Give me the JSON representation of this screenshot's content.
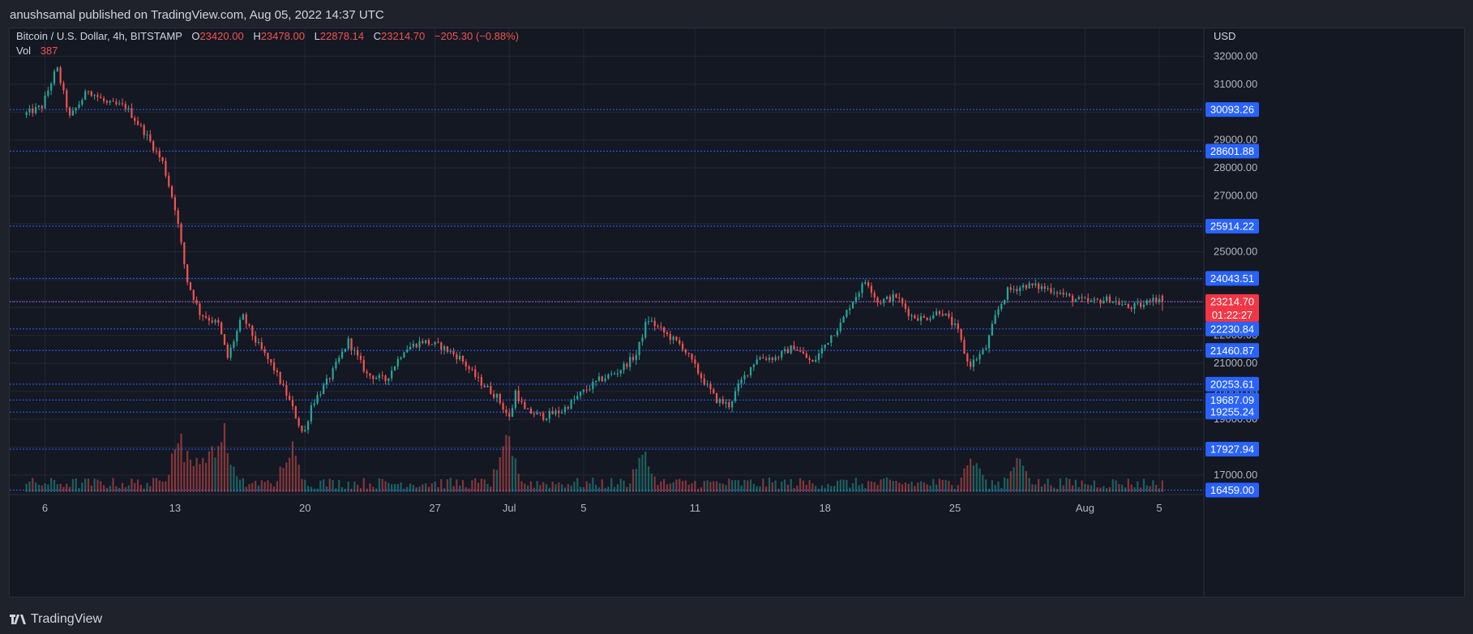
{
  "header": {
    "published": "anushsamal published on TradingView.com, Aug 05, 2022 14:37 UTC"
  },
  "footer": {
    "brand": "TradingView"
  },
  "chart_data": {
    "type": "candlestick",
    "symbol": "Bitcoin / U.S. Dollar, 4h, BITSTAMP",
    "ohlc": {
      "o": "23420.00",
      "h": "23478.00",
      "l": "22878.14",
      "c": "23214.70",
      "change": "−205.30 (−0.88%)"
    },
    "volume": {
      "label": "Vol",
      "value": "387"
    },
    "currency": "USD",
    "ylim": [
      16300,
      33000
    ],
    "y_ticks": [
      17000,
      18000,
      19000,
      20000,
      21000,
      22000,
      23000,
      24000,
      25000,
      26000,
      27000,
      28000,
      29000,
      30000,
      31000,
      32000
    ],
    "x_ticks": [
      {
        "label": "6",
        "day": 1
      },
      {
        "label": "13",
        "day": 8
      },
      {
        "label": "20",
        "day": 15
      },
      {
        "label": "27",
        "day": 22
      },
      {
        "label": "Jul",
        "day": 26
      },
      {
        "label": "5",
        "day": 30
      },
      {
        "label": "11",
        "day": 36
      },
      {
        "label": "18",
        "day": 43
      },
      {
        "label": "25",
        "day": 50
      },
      {
        "label": "Aug",
        "day": 57
      },
      {
        "label": "5",
        "day": 61
      }
    ],
    "x_range_days": [
      -0.9,
      63.4
    ],
    "levels": [
      30093.26,
      28601.88,
      25914.22,
      24043.51,
      23199.88,
      22230.84,
      21460.87,
      20253.61,
      19687.09,
      19255.24,
      17927.94,
      16459.0
    ],
    "level_labels": [
      "30093.26",
      "28601.88",
      "25914.22",
      "24043.51",
      "23199.88",
      "22230.84",
      "21460.87",
      "20253.61",
      "19687.09",
      "19255.24",
      "17927.94",
      "16459.00"
    ],
    "last_price": {
      "value": 23214.7,
      "label": "23214.70",
      "countdown": "01:22:27"
    },
    "path_keypoints": [
      [
        0,
        29900
      ],
      [
        1,
        30200
      ],
      [
        1.8,
        31600
      ],
      [
        2.5,
        29800
      ],
      [
        3.5,
        30800
      ],
      [
        4.5,
        30300
      ],
      [
        5.5,
        30200
      ],
      [
        6.5,
        29300
      ],
      [
        7.5,
        28200
      ],
      [
        8.2,
        26500
      ],
      [
        8.8,
        24000
      ],
      [
        9.5,
        22800
      ],
      [
        10.5,
        22400
      ],
      [
        11,
        21200
      ],
      [
        11.8,
        22700
      ],
      [
        12.5,
        21800
      ],
      [
        13.5,
        20800
      ],
      [
        14.3,
        19700
      ],
      [
        15.1,
        18400
      ],
      [
        15.5,
        19500
      ],
      [
        16.5,
        20500
      ],
      [
        17.5,
        21800
      ],
      [
        18.5,
        20600
      ],
      [
        19.5,
        20400
      ],
      [
        20.5,
        21500
      ],
      [
        21.5,
        21800
      ],
      [
        22.5,
        21600
      ],
      [
        23.5,
        21200
      ],
      [
        24.5,
        20400
      ],
      [
        25.5,
        19800
      ],
      [
        26.2,
        19000
      ],
      [
        26.5,
        20000
      ],
      [
        27,
        19300
      ],
      [
        28,
        19100
      ],
      [
        29,
        19300
      ],
      [
        30,
        19900
      ],
      [
        31,
        20400
      ],
      [
        32,
        20700
      ],
      [
        33,
        21300
      ],
      [
        33.6,
        22600
      ],
      [
        34.5,
        22100
      ],
      [
        35.5,
        21600
      ],
      [
        36.5,
        20500
      ],
      [
        37.3,
        19700
      ],
      [
        38,
        19500
      ],
      [
        38.6,
        20300
      ],
      [
        39.5,
        21200
      ],
      [
        40.5,
        21200
      ],
      [
        41.5,
        21600
      ],
      [
        42.5,
        21000
      ],
      [
        43.5,
        22000
      ],
      [
        44,
        22400
      ],
      [
        44.6,
        23200
      ],
      [
        45.4,
        24000
      ],
      [
        46,
        23200
      ],
      [
        47,
        23400
      ],
      [
        47.8,
        22700
      ],
      [
        48.5,
        22600
      ],
      [
        49.4,
        22900
      ],
      [
        50.3,
        22200
      ],
      [
        50.9,
        20900
      ],
      [
        51.8,
        21500
      ],
      [
        52.4,
        22800
      ],
      [
        53,
        23600
      ],
      [
        54,
        23800
      ],
      [
        55,
        23700
      ],
      [
        55.6,
        23600
      ],
      [
        56.5,
        23300
      ],
      [
        57.5,
        23200
      ],
      [
        58.5,
        23300
      ],
      [
        59.5,
        23000
      ],
      [
        60.4,
        23100
      ],
      [
        60.8,
        23420
      ],
      [
        61.2,
        23214.7
      ]
    ],
    "volume_spikes": [
      {
        "day": 8.2,
        "value": 60
      },
      {
        "day": 9.4,
        "value": 40
      },
      {
        "day": 10.5,
        "value": 75
      },
      {
        "day": 14.3,
        "value": 45
      },
      {
        "day": 25.9,
        "value": 55
      },
      {
        "day": 33.2,
        "value": 38
      },
      {
        "day": 50.9,
        "value": 35
      },
      {
        "day": 53.4,
        "value": 33
      }
    ],
    "colors": {
      "up": "#26a69a",
      "down": "#ef5350",
      "level": "#2962ff",
      "level_text": "#ffffff",
      "axis_text": "#b2b5be",
      "grid": "#232733"
    }
  }
}
